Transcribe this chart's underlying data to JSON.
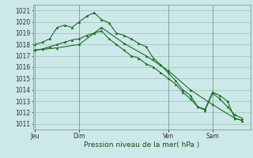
{
  "xlabel": "Pression niveau de la mer( hPa )",
  "background_color": "#cce8e8",
  "grid_color": "#aacccc",
  "line_color": "#1a6e1a",
  "ylim": [
    1010.5,
    1021.5
  ],
  "yticks": [
    1011,
    1012,
    1013,
    1014,
    1015,
    1016,
    1017,
    1018,
    1019,
    1020,
    1021
  ],
  "day_labels": [
    "Jeu",
    "Dim",
    "Ven",
    "Sam"
  ],
  "day_positions": [
    0.0,
    0.214,
    0.643,
    0.857
  ],
  "series1_x": [
    0.0,
    0.036,
    0.071,
    0.107,
    0.143,
    0.179,
    0.214,
    0.25,
    0.286,
    0.321,
    0.357,
    0.393,
    0.429,
    0.464,
    0.5,
    0.536,
    0.571,
    0.607,
    0.643,
    0.679,
    0.714,
    0.75,
    0.786,
    0.821,
    0.857,
    0.893,
    0.929,
    0.964,
    1.0
  ],
  "series1_y": [
    1018.0,
    1018.2,
    1018.5,
    1019.5,
    1019.7,
    1019.5,
    1020.0,
    1020.5,
    1020.8,
    1020.2,
    1019.9,
    1019.0,
    1018.8,
    1018.5,
    1018.1,
    1017.8,
    1016.8,
    1016.2,
    1015.5,
    1014.8,
    1014.0,
    1013.5,
    1012.5,
    1012.3,
    1013.8,
    1013.5,
    1013.0,
    1011.5,
    1011.3
  ],
  "series2_x": [
    0.0,
    0.036,
    0.071,
    0.107,
    0.143,
    0.179,
    0.214,
    0.25,
    0.286,
    0.321,
    0.357,
    0.393,
    0.429,
    0.464,
    0.5,
    0.536,
    0.571,
    0.607,
    0.643,
    0.679,
    0.714,
    0.75,
    0.786,
    0.821,
    0.857,
    0.893,
    0.929,
    0.964,
    1.0
  ],
  "series2_y": [
    1017.5,
    1017.6,
    1017.8,
    1018.0,
    1018.2,
    1018.4,
    1018.5,
    1018.8,
    1019.0,
    1019.2,
    1018.5,
    1018.0,
    1017.5,
    1017.0,
    1016.8,
    1016.3,
    1016.0,
    1015.5,
    1015.0,
    1014.5,
    1013.8,
    1013.2,
    1012.5,
    1012.2,
    1013.7,
    1013.2,
    1012.5,
    1011.8,
    1011.5
  ],
  "series3_x": [
    0.0,
    0.107,
    0.214,
    0.321,
    0.429,
    0.536,
    0.643,
    0.75,
    0.857,
    0.964,
    1.0
  ],
  "series3_y": [
    1017.5,
    1017.7,
    1018.0,
    1019.5,
    1018.1,
    1017.0,
    1015.7,
    1014.0,
    1012.7,
    1011.5,
    1011.3
  ]
}
